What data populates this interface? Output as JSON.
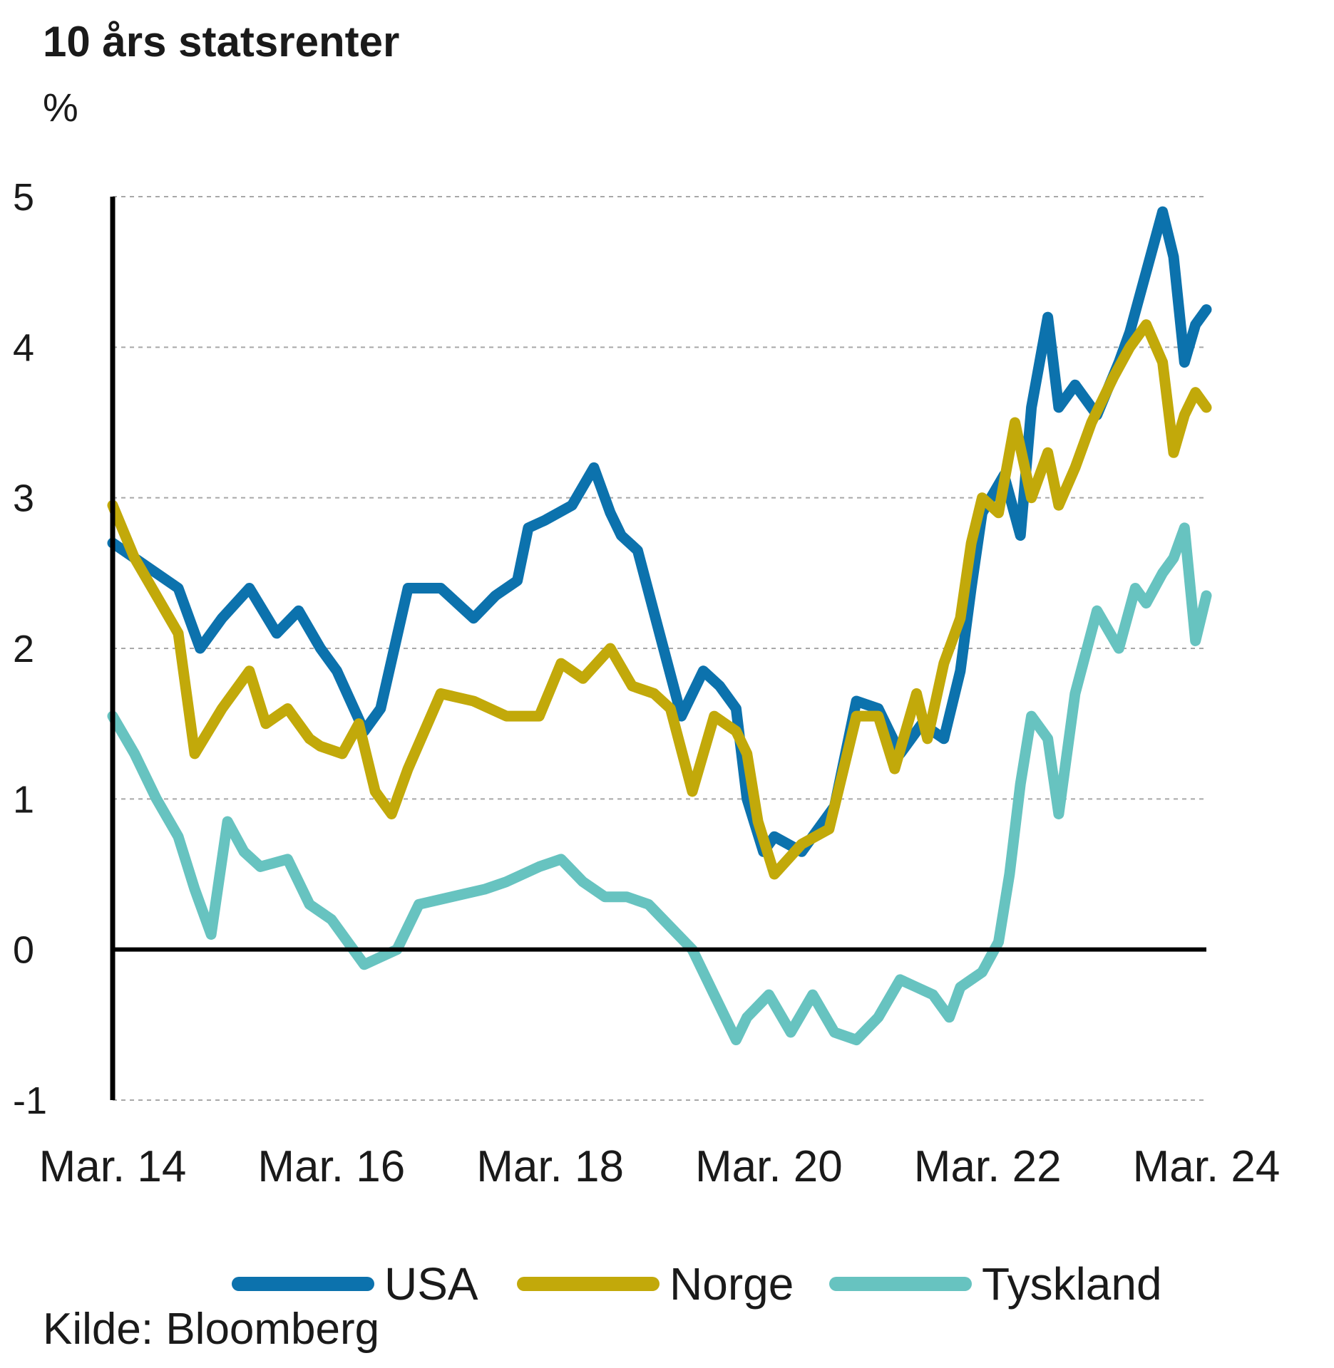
{
  "chart_data": {
    "type": "line",
    "title": "10 års statsrenter",
    "ylabel": "%",
    "source": "Kilde: Bloomberg",
    "ylim": [
      -1,
      5
    ],
    "yticks": [
      "5",
      "4",
      "3",
      "2",
      "1",
      "0",
      "-1"
    ],
    "xticks": [
      "Mar. 14",
      "Mar. 16",
      "Mar. 18",
      "Mar. 20",
      "Mar. 22",
      "Mar. 24"
    ],
    "xlim": [
      2014.2,
      2024.2
    ],
    "grid": "horizontal dashed",
    "legend_position": "bottom",
    "series": [
      {
        "name": "USA",
        "color": "#0c72ad",
        "x": [
          2014.2,
          2014.5,
          2014.8,
          2015.0,
          2015.2,
          2015.45,
          2015.7,
          2015.9,
          2016.1,
          2016.25,
          2016.5,
          2016.65,
          2016.9,
          2017.2,
          2017.5,
          2017.7,
          2017.9,
          2018.0,
          2018.15,
          2018.4,
          2018.6,
          2018.75,
          2018.85,
          2019.0,
          2019.2,
          2019.4,
          2019.6,
          2019.75,
          2019.9,
          2020.0,
          2020.15,
          2020.25,
          2020.5,
          2020.8,
          2021.0,
          2021.2,
          2021.4,
          2021.6,
          2021.8,
          2021.95,
          2022.05,
          2022.15,
          2022.35,
          2022.5,
          2022.6,
          2022.75,
          2022.85,
          2023.0,
          2023.2,
          2023.4,
          2023.5,
          2023.65,
          2023.8,
          2023.9,
          2024.0,
          2024.1,
          2024.2
        ],
        "values": [
          2.7,
          2.55,
          2.4,
          2.0,
          2.2,
          2.4,
          2.1,
          2.25,
          2.0,
          1.85,
          1.45,
          1.6,
          2.4,
          2.4,
          2.2,
          2.35,
          2.45,
          2.8,
          2.85,
          2.95,
          3.2,
          2.9,
          2.75,
          2.65,
          2.1,
          1.55,
          1.85,
          1.75,
          1.6,
          1.0,
          0.65,
          0.75,
          0.65,
          0.95,
          1.65,
          1.6,
          1.3,
          1.5,
          1.4,
          1.85,
          2.4,
          2.9,
          3.15,
          2.75,
          3.6,
          4.2,
          3.6,
          3.75,
          3.55,
          3.9,
          4.1,
          4.5,
          4.9,
          4.6,
          3.9,
          4.15,
          4.25
        ]
      },
      {
        "name": "Norge",
        "color": "#c2a90a",
        "x": [
          2014.2,
          2014.4,
          2014.6,
          2014.8,
          2014.95,
          2015.2,
          2015.45,
          2015.6,
          2015.8,
          2016.0,
          2016.1,
          2016.3,
          2016.45,
          2016.6,
          2016.75,
          2016.9,
          2017.2,
          2017.5,
          2017.8,
          2018.1,
          2018.3,
          2018.5,
          2018.75,
          2018.95,
          2019.15,
          2019.3,
          2019.5,
          2019.7,
          2019.9,
          2020.0,
          2020.1,
          2020.25,
          2020.5,
          2020.75,
          2021.0,
          2021.2,
          2021.35,
          2021.55,
          2021.65,
          2021.8,
          2021.95,
          2022.05,
          2022.15,
          2022.3,
          2022.45,
          2022.6,
          2022.75,
          2022.85,
          2023.0,
          2023.15,
          2023.35,
          2023.5,
          2023.65,
          2023.8,
          2023.9,
          2024.0,
          2024.1,
          2024.2
        ],
        "values": [
          2.95,
          2.6,
          2.35,
          2.1,
          1.3,
          1.6,
          1.85,
          1.5,
          1.6,
          1.4,
          1.35,
          1.3,
          1.5,
          1.05,
          0.9,
          1.2,
          1.7,
          1.65,
          1.55,
          1.55,
          1.9,
          1.8,
          2.0,
          1.75,
          1.7,
          1.6,
          1.05,
          1.55,
          1.45,
          1.3,
          0.85,
          0.5,
          0.7,
          0.8,
          1.55,
          1.55,
          1.2,
          1.7,
          1.4,
          1.9,
          2.2,
          2.7,
          3.0,
          2.9,
          3.5,
          3.0,
          3.3,
          2.95,
          3.2,
          3.5,
          3.8,
          4.0,
          4.15,
          3.9,
          3.3,
          3.55,
          3.7,
          3.6
        ]
      },
      {
        "name": "Tyskland",
        "color": "#67c3c0",
        "x": [
          2014.2,
          2014.4,
          2014.6,
          2014.8,
          2014.95,
          2015.1,
          2015.25,
          2015.4,
          2015.55,
          2015.8,
          2016.0,
          2016.2,
          2016.35,
          2016.5,
          2016.65,
          2016.8,
          2017.0,
          2017.3,
          2017.6,
          2017.8,
          2018.1,
          2018.3,
          2018.5,
          2018.7,
          2018.9,
          2019.1,
          2019.3,
          2019.5,
          2019.7,
          2019.9,
          2020.0,
          2020.2,
          2020.4,
          2020.6,
          2020.8,
          2021.0,
          2021.2,
          2021.4,
          2021.55,
          2021.7,
          2021.85,
          2021.95,
          2022.05,
          2022.15,
          2022.3,
          2022.4,
          2022.5,
          2022.6,
          2022.75,
          2022.85,
          2023.0,
          2023.2,
          2023.4,
          2023.55,
          2023.65,
          2023.8,
          2023.9,
          2024.0,
          2024.1,
          2024.2
        ],
        "values": [
          1.55,
          1.3,
          1.0,
          0.75,
          0.4,
          0.1,
          0.85,
          0.65,
          0.55,
          0.6,
          0.3,
          0.2,
          0.05,
          -0.1,
          -0.05,
          0.0,
          0.3,
          0.35,
          0.4,
          0.45,
          0.55,
          0.6,
          0.45,
          0.35,
          0.35,
          0.3,
          0.15,
          0.0,
          -0.3,
          -0.6,
          -0.45,
          -0.3,
          -0.55,
          -0.3,
          -0.55,
          -0.6,
          -0.45,
          -0.2,
          -0.25,
          -0.3,
          -0.45,
          -0.25,
          -0.2,
          -0.15,
          0.05,
          0.5,
          1.1,
          1.55,
          1.4,
          0.9,
          1.7,
          2.25,
          2.0,
          2.4,
          2.3,
          2.5,
          2.6,
          2.8,
          2.05,
          2.35
        ]
      }
    ]
  }
}
